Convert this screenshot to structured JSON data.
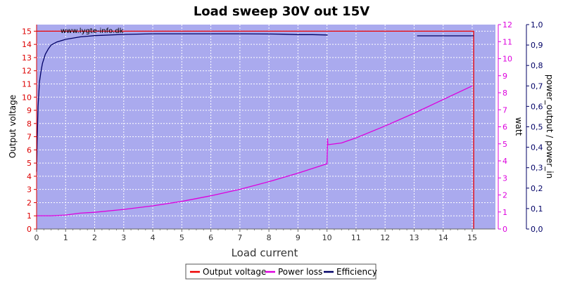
{
  "chart_data": {
    "type": "line",
    "title": "Load sweep 30V out 15V",
    "xlabel": "Load current",
    "watermark": "www.lygte-info.dk",
    "xlim": [
      0,
      15.8
    ],
    "x_ticks": [
      "0",
      "1",
      "2",
      "3",
      "4",
      "5",
      "6",
      "7",
      "8",
      "9",
      "10",
      "11",
      "12",
      "13",
      "14",
      "15"
    ],
    "grid": true,
    "legend_position": "bottom-center",
    "background_color": "#aaaaee",
    "axes": {
      "left": {
        "label": "Output voltage",
        "min": 0,
        "max": 15.5,
        "color": "#dd0000",
        "ticks": [
          "0",
          "1",
          "2",
          "3",
          "4",
          "5",
          "6",
          "7",
          "8",
          "9",
          "10",
          "11",
          "12",
          "13",
          "14",
          "15"
        ]
      },
      "right1": {
        "label": "watt",
        "min": 0,
        "max": 12,
        "color": "#dd00dd",
        "ticks": [
          "0",
          "1",
          "2",
          "3",
          "4",
          "5",
          "6",
          "7",
          "8",
          "9",
          "10",
          "11",
          "12"
        ]
      },
      "right2": {
        "label": "power_output / power_in",
        "min": 0,
        "max": 1.0,
        "color": "#000066",
        "ticks": [
          "0,0",
          "0,1",
          "0,2",
          "0,3",
          "0,4",
          "0,5",
          "0,6",
          "0,7",
          "0,8",
          "0,9",
          "1,0"
        ]
      }
    },
    "series": [
      {
        "name": "Output voltage",
        "axis": "left",
        "color": "#ee0000",
        "points": [
          [
            0,
            15.0
          ],
          [
            1,
            15.0
          ],
          [
            3,
            15.0
          ],
          [
            5,
            15.0
          ],
          [
            7,
            15.0
          ],
          [
            9,
            15.0
          ],
          [
            10,
            15.0
          ],
          [
            11,
            15.0
          ],
          [
            12,
            15.0
          ],
          [
            13,
            15.0
          ],
          [
            14,
            15.0
          ],
          [
            15.05,
            15.0
          ],
          [
            15.05,
            0
          ]
        ]
      },
      {
        "name": "Power loss",
        "axis": "right1",
        "color": "#dd00dd",
        "points": [
          [
            0,
            0.78
          ],
          [
            0.5,
            0.78
          ],
          [
            1,
            0.82
          ],
          [
            1.5,
            0.93
          ],
          [
            2,
            0.98
          ],
          [
            3,
            1.15
          ],
          [
            4,
            1.36
          ],
          [
            5,
            1.62
          ],
          [
            6,
            1.95
          ],
          [
            7,
            2.33
          ],
          [
            8,
            2.78
          ],
          [
            9,
            3.28
          ],
          [
            10,
            3.83
          ],
          [
            10.02,
            5.3
          ],
          [
            10.03,
            4.95
          ],
          [
            10.5,
            5.05
          ],
          [
            11,
            5.35
          ],
          [
            12,
            6.05
          ],
          [
            13,
            6.8
          ],
          [
            14,
            7.6
          ],
          [
            15,
            8.4
          ]
        ]
      },
      {
        "name": "Efficiency",
        "axis": "right2",
        "color": "#000066",
        "points": [
          [
            0,
            0.28
          ],
          [
            0.02,
            0.43
          ],
          [
            0.05,
            0.6
          ],
          [
            0.1,
            0.72
          ],
          [
            0.15,
            0.77
          ],
          [
            0.2,
            0.81
          ],
          [
            0.3,
            0.855
          ],
          [
            0.4,
            0.88
          ],
          [
            0.5,
            0.9
          ],
          [
            0.7,
            0.915
          ],
          [
            1,
            0.928
          ],
          [
            1.5,
            0.94
          ],
          [
            2,
            0.946
          ],
          [
            3,
            0.952
          ],
          [
            4,
            0.955
          ],
          [
            5,
            0.955
          ],
          [
            6,
            0.955
          ],
          [
            7,
            0.955
          ],
          [
            8,
            0.954
          ],
          [
            8.5,
            0.953
          ],
          [
            9,
            0.951
          ],
          [
            9.5,
            0.951
          ],
          [
            10,
            0.949
          ],
          [
            10.02,
            0.949
          ]
        ]
      },
      {
        "name": "Efficiency",
        "axis": "right2",
        "color": "#000066",
        "points": [
          [
            13.1,
            0.945
          ],
          [
            14,
            0.945
          ],
          [
            15,
            0.945
          ],
          [
            15.05,
            0.945
          ]
        ]
      }
    ]
  }
}
